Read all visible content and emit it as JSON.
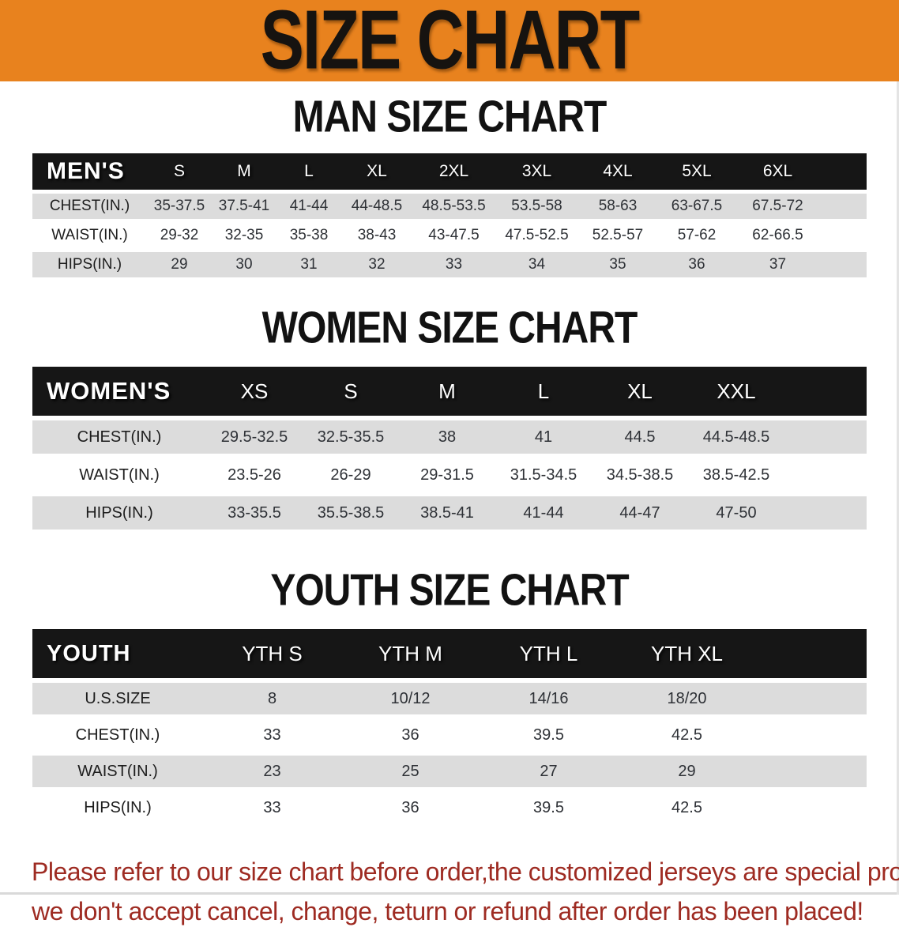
{
  "banner": {
    "title": "SIZE CHART"
  },
  "colors": {
    "banner_bg": "#E8821E",
    "header_bar": "#161616",
    "stripe_gray": "#DCDCDC",
    "footer_red": "#9E2B22",
    "background": "#FFFFFF"
  },
  "sections": [
    {
      "heading": "MAN SIZE CHART",
      "header_label": "MEN'S",
      "columns": [
        "S",
        "M",
        "L",
        "XL",
        "2XL",
        "3XL",
        "4XL",
        "5XL",
        "6XL"
      ],
      "rows": [
        {
          "label": "CHEST(IN.)",
          "values": [
            "35-37.5",
            "37.5-41",
            "41-44",
            "44-48.5",
            "48.5-53.5",
            "53.5-58",
            "58-63",
            "63-67.5",
            "67.5-72"
          ]
        },
        {
          "label": "WAIST(IN.)",
          "values": [
            "29-32",
            "32-35",
            "35-38",
            "38-43",
            "43-47.5",
            "47.5-52.5",
            "52.5-57",
            "57-62",
            "62-66.5"
          ]
        },
        {
          "label": "HIPS(IN.)",
          "values": [
            "29",
            "30",
            "31",
            "32",
            "33",
            "34",
            "35",
            "36",
            "37"
          ]
        }
      ]
    },
    {
      "heading": "WOMEN SIZE CHART",
      "header_label": "WOMEN'S",
      "columns": [
        "XS",
        "S",
        "M",
        "L",
        "XL",
        "XXL"
      ],
      "rows": [
        {
          "label": "CHEST(IN.)",
          "values": [
            "29.5-32.5",
            "32.5-35.5",
            "38",
            "41",
            "44.5",
            "44.5-48.5"
          ]
        },
        {
          "label": "WAIST(IN.)",
          "values": [
            "23.5-26",
            "26-29",
            "29-31.5",
            "31.5-34.5",
            "34.5-38.5",
            "38.5-42.5"
          ]
        },
        {
          "label": "HIPS(IN.)",
          "values": [
            "33-35.5",
            "35.5-38.5",
            "38.5-41",
            "41-44",
            "44-47",
            "47-50"
          ]
        }
      ]
    },
    {
      "heading": "YOUTH SIZE CHART",
      "header_label": "YOUTH",
      "columns": [
        "YTH S",
        "YTH M",
        "YTH L",
        "YTH XL"
      ],
      "rows": [
        {
          "label": "U.S.SIZE",
          "values": [
            "8",
            "10/12",
            "14/16",
            "18/20"
          ]
        },
        {
          "label": "CHEST(IN.)",
          "values": [
            "33",
            "36",
            "39.5",
            "42.5"
          ]
        },
        {
          "label": "WAIST(IN.)",
          "values": [
            "23",
            "25",
            "27",
            "29"
          ]
        },
        {
          "label": "HIPS(IN.)",
          "values": [
            "33",
            "36",
            "39.5",
            "42.5"
          ]
        }
      ]
    }
  ],
  "footer": {
    "line1": "Please refer to our size chart before order,the customized jerseys are special products,",
    "line2": "we don't accept cancel, change, teturn or refund after order has been placed!"
  }
}
